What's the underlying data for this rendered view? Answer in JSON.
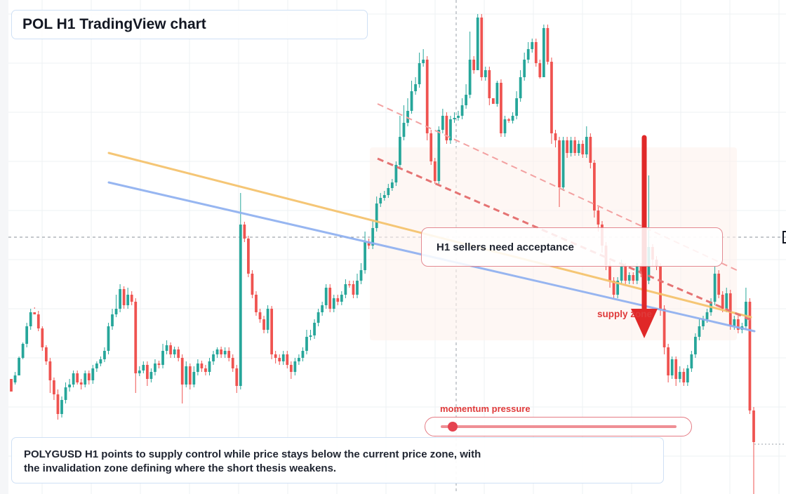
{
  "title": "POL H1 TradingView chart",
  "callout": "H1 sellers need acceptance",
  "supply_label": "supply zone",
  "momentum_label": "momentum pressure",
  "momentum_level": 0.05,
  "caption_lines": [
    "POLYGUSD H1 points to supply control while price stays below the current price zone, with",
    "the invalidation zone defining where the short thesis weakens."
  ],
  "colors": {
    "bull": "#26a69a",
    "bear": "#ef5350",
    "ma_fast": "#f5c26b",
    "ma_slow": "#8fb0f0",
    "accent_red": "#df3a3a",
    "grid": "#eef0f3"
  },
  "chart_data": {
    "type": "candlestick",
    "title": "POL H1 TradingView chart",
    "ylim": [
      0,
      700
    ],
    "candles": [
      [
        540,
        558,
        550,
        545
      ],
      [
        545,
        535,
        548,
        530
      ],
      [
        535,
        510,
        532,
        508
      ],
      [
        510,
        490,
        512,
        488
      ],
      [
        490,
        465,
        495,
        460
      ],
      [
        465,
        445,
        470,
        440
      ],
      [
        445,
        448,
        440,
        438
      ],
      [
        448,
        468,
        443,
        472
      ],
      [
        468,
        495,
        465,
        500
      ],
      [
        495,
        515,
        492,
        520
      ],
      [
        515,
        542,
        510,
        560
      ],
      [
        542,
        562,
        538,
        570
      ],
      [
        562,
        590,
        555,
        598
      ],
      [
        590,
        570,
        595,
        565
      ],
      [
        570,
        552,
        575,
        545
      ],
      [
        552,
        548,
        558,
        540
      ],
      [
        548,
        532,
        552,
        528
      ],
      [
        532,
        545,
        528,
        548
      ],
      [
        545,
        548,
        540,
        555
      ],
      [
        548,
        532,
        552,
        528
      ],
      [
        532,
        542,
        528,
        548
      ],
      [
        542,
        525,
        547,
        520
      ],
      [
        525,
        518,
        530,
        515
      ],
      [
        518,
        512,
        522,
        508
      ],
      [
        512,
        500,
        516,
        495
      ],
      [
        500,
        465,
        505,
        460
      ],
      [
        465,
        448,
        470,
        440
      ],
      [
        448,
        440,
        452,
        420
      ],
      [
        440,
        412,
        445,
        405
      ],
      [
        412,
        435,
        408,
        440
      ],
      [
        435,
        420,
        440,
        410
      ],
      [
        420,
        430,
        415,
        435
      ],
      [
        430,
        532,
        425,
        560
      ],
      [
        532,
        528,
        536,
        522
      ],
      [
        528,
        520,
        532,
        515
      ],
      [
        520,
        540,
        515,
        550
      ],
      [
        540,
        530,
        545,
        525
      ],
      [
        530,
        518,
        535,
        512
      ],
      [
        518,
        520,
        514,
        525
      ],
      [
        520,
        500,
        525,
        490
      ],
      [
        500,
        492,
        505,
        485
      ],
      [
        492,
        505,
        488,
        510
      ],
      [
        505,
        498,
        510,
        494
      ],
      [
        498,
        510,
        494,
        515
      ],
      [
        510,
        548,
        505,
        575
      ],
      [
        548,
        522,
        552,
        515
      ],
      [
        522,
        548,
        518,
        555
      ],
      [
        548,
        530,
        552,
        522
      ],
      [
        530,
        518,
        535,
        512
      ],
      [
        518,
        525,
        514,
        530
      ],
      [
        525,
        530,
        520,
        535
      ],
      [
        530,
        515,
        535,
        510
      ],
      [
        515,
        505,
        520,
        500
      ],
      [
        505,
        498,
        510,
        495
      ],
      [
        498,
        505,
        494,
        510
      ],
      [
        505,
        500,
        510,
        495
      ],
      [
        500,
        510,
        495,
        515
      ],
      [
        510,
        525,
        505,
        530
      ],
      [
        525,
        550,
        520,
        560
      ],
      [
        550,
        320,
        555,
        275
      ],
      [
        320,
        340,
        316,
        345
      ],
      [
        340,
        390,
        336,
        395
      ],
      [
        390,
        420,
        385,
        425
      ],
      [
        420,
        445,
        415,
        450
      ],
      [
        445,
        455,
        440,
        460
      ],
      [
        455,
        470,
        450,
        475
      ],
      [
        470,
        440,
        475,
        435
      ],
      [
        440,
        505,
        436,
        512
      ],
      [
        505,
        510,
        500,
        518
      ],
      [
        510,
        515,
        505,
        520
      ],
      [
        515,
        505,
        520,
        500
      ],
      [
        505,
        520,
        500,
        525
      ],
      [
        520,
        530,
        515,
        540
      ],
      [
        530,
        515,
        535,
        510
      ],
      [
        515,
        510,
        520,
        505
      ],
      [
        510,
        500,
        515,
        495
      ],
      [
        500,
        480,
        505,
        470
      ],
      [
        480,
        478,
        485,
        470
      ],
      [
        478,
        460,
        483,
        455
      ],
      [
        460,
        445,
        465,
        440
      ],
      [
        445,
        435,
        450,
        430
      ],
      [
        435,
        410,
        440,
        405
      ],
      [
        410,
        440,
        405,
        445
      ],
      [
        440,
        425,
        445,
        420
      ],
      [
        425,
        430,
        420,
        435
      ],
      [
        430,
        420,
        435,
        415
      ],
      [
        420,
        405,
        425,
        398
      ],
      [
        405,
        405,
        410,
        400
      ],
      [
        405,
        420,
        400,
        425
      ],
      [
        420,
        400,
        425,
        390
      ],
      [
        400,
        385,
        405,
        375
      ],
      [
        385,
        345,
        390,
        330
      ],
      [
        345,
        350,
        340,
        355
      ],
      [
        350,
        325,
        355,
        315
      ],
      [
        325,
        290,
        330,
        280
      ],
      [
        290,
        282,
        295,
        275
      ],
      [
        282,
        278,
        286,
        272
      ],
      [
        278,
        268,
        282,
        262
      ],
      [
        268,
        260,
        272,
        255
      ],
      [
        260,
        235,
        265,
        230
      ],
      [
        235,
        195,
        240,
        165
      ],
      [
        195,
        175,
        200,
        150
      ],
      [
        175,
        158,
        180,
        140
      ],
      [
        158,
        130,
        162,
        115
      ],
      [
        130,
        120,
        135,
        110
      ],
      [
        120,
        90,
        125,
        75
      ],
      [
        90,
        85,
        95,
        70
      ],
      [
        85,
        190,
        80,
        200
      ],
      [
        190,
        230,
        185,
        235
      ],
      [
        230,
        258,
        225,
        262
      ],
      [
        258,
        185,
        262,
        180
      ],
      [
        185,
        165,
        190,
        155
      ],
      [
        165,
        200,
        160,
        205
      ],
      [
        200,
        170,
        205,
        165
      ],
      [
        170,
        168,
        175,
        160
      ],
      [
        168,
        165,
        172,
        158
      ],
      [
        165,
        150,
        170,
        140
      ],
      [
        150,
        135,
        155,
        120
      ],
      [
        135,
        85,
        140,
        45
      ],
      [
        85,
        100,
        80,
        105
      ],
      [
        100,
        25,
        95,
        20
      ],
      [
        25,
        110,
        20,
        115
      ],
      [
        110,
        100,
        115,
        95
      ],
      [
        100,
        140,
        95,
        150
      ],
      [
        140,
        148,
        145,
        143
      ],
      [
        148,
        118,
        152,
        115
      ],
      [
        118,
        190,
        113,
        195
      ],
      [
        190,
        170,
        195,
        165
      ],
      [
        170,
        172,
        175,
        168
      ],
      [
        172,
        165,
        176,
        160
      ],
      [
        165,
        140,
        170,
        130
      ],
      [
        140,
        110,
        145,
        100
      ],
      [
        110,
        85,
        115,
        75
      ],
      [
        85,
        70,
        90,
        60
      ],
      [
        70,
        60,
        75,
        55
      ],
      [
        60,
        90,
        55,
        95
      ],
      [
        90,
        110,
        85,
        112
      ],
      [
        110,
        40,
        105,
        35
      ],
      [
        40,
        88,
        35,
        92
      ],
      [
        88,
        190,
        82,
        205
      ],
      [
        190,
        200,
        185,
        210
      ],
      [
        200,
        267,
        195,
        295
      ],
      [
        267,
        200,
        272,
        195
      ],
      [
        200,
        218,
        195,
        225
      ],
      [
        218,
        200,
        223,
        195
      ],
      [
        200,
        218,
        195,
        222
      ],
      [
        218,
        205,
        222,
        200
      ],
      [
        205,
        220,
        200,
        225
      ],
      [
        220,
        195,
        225,
        180
      ],
      [
        195,
        232,
        190,
        240
      ],
      [
        232,
        300,
        228,
        310
      ],
      [
        300,
        320,
        295,
        330
      ],
      [
        320,
        350,
        315,
        360
      ],
      [
        350,
        378,
        345,
        385
      ],
      [
        378,
        400,
        372,
        410
      ],
      [
        400,
        420,
        395,
        425
      ],
      [
        420,
        400,
        425,
        395
      ],
      [
        400,
        380,
        405,
        370
      ],
      [
        380,
        400,
        375,
        405
      ],
      [
        400,
        392,
        405,
        388
      ],
      [
        392,
        400,
        388,
        405
      ],
      [
        400,
        380,
        405,
        375
      ],
      [
        380,
        390,
        375,
        395
      ],
      [
        390,
        400,
        385,
        405
      ],
      [
        400,
        352,
        405,
        250
      ],
      [
        352,
        370,
        348,
        380
      ],
      [
        370,
        380,
        365,
        385
      ],
      [
        380,
        440,
        375,
        450
      ],
      [
        440,
        495,
        435,
        505
      ],
      [
        495,
        535,
        490,
        545
      ],
      [
        535,
        512,
        540,
        508
      ],
      [
        512,
        540,
        508,
        550
      ],
      [
        540,
        530,
        545,
        522
      ],
      [
        530,
        545,
        525,
        550
      ],
      [
        545,
        525,
        550,
        520
      ],
      [
        525,
        505,
        530,
        500
      ],
      [
        505,
        480,
        510,
        475
      ],
      [
        480,
        465,
        485,
        455
      ],
      [
        465,
        455,
        470,
        450
      ],
      [
        455,
        445,
        460,
        440
      ],
      [
        445,
        430,
        450,
        425
      ],
      [
        430,
        390,
        435,
        380
      ],
      [
        390,
        420,
        385,
        425
      ],
      [
        420,
        440,
        415,
        445
      ],
      [
        440,
        418,
        445,
        410
      ],
      [
        418,
        465,
        413,
        470
      ],
      [
        465,
        455,
        470,
        450
      ],
      [
        455,
        470,
        450,
        475
      ],
      [
        470,
        465,
        475,
        460
      ],
      [
        465,
        430,
        470,
        410
      ],
      [
        430,
        585,
        425,
        590
      ],
      [
        585,
        630,
        580,
        704
      ]
    ],
    "moving_averages": [
      {
        "color": "#f5c26b",
        "start": [
          155,
          218
        ],
        "end": [
          1070,
          452
        ]
      },
      {
        "color": "#8fb0f0",
        "start": [
          155,
          260
        ],
        "end": [
          1075,
          472
        ]
      }
    ],
    "trendlines": [
      {
        "color": "#f3a1a1",
        "dash": true,
        "start": [
          538,
          148
        ],
        "end": [
          1052,
          386
        ]
      },
      {
        "color": "#e57373",
        "dash": true,
        "start": [
          538,
          226
        ],
        "end": [
          1070,
          456
        ],
        "width": 3
      }
    ],
    "supply_zone": {
      "x0": 527,
      "y0": 210,
      "x1": 1050,
      "y1": 485
    },
    "price_line": 338,
    "arrow": {
      "x": 918,
      "y0": 196,
      "y1": 482
    }
  }
}
